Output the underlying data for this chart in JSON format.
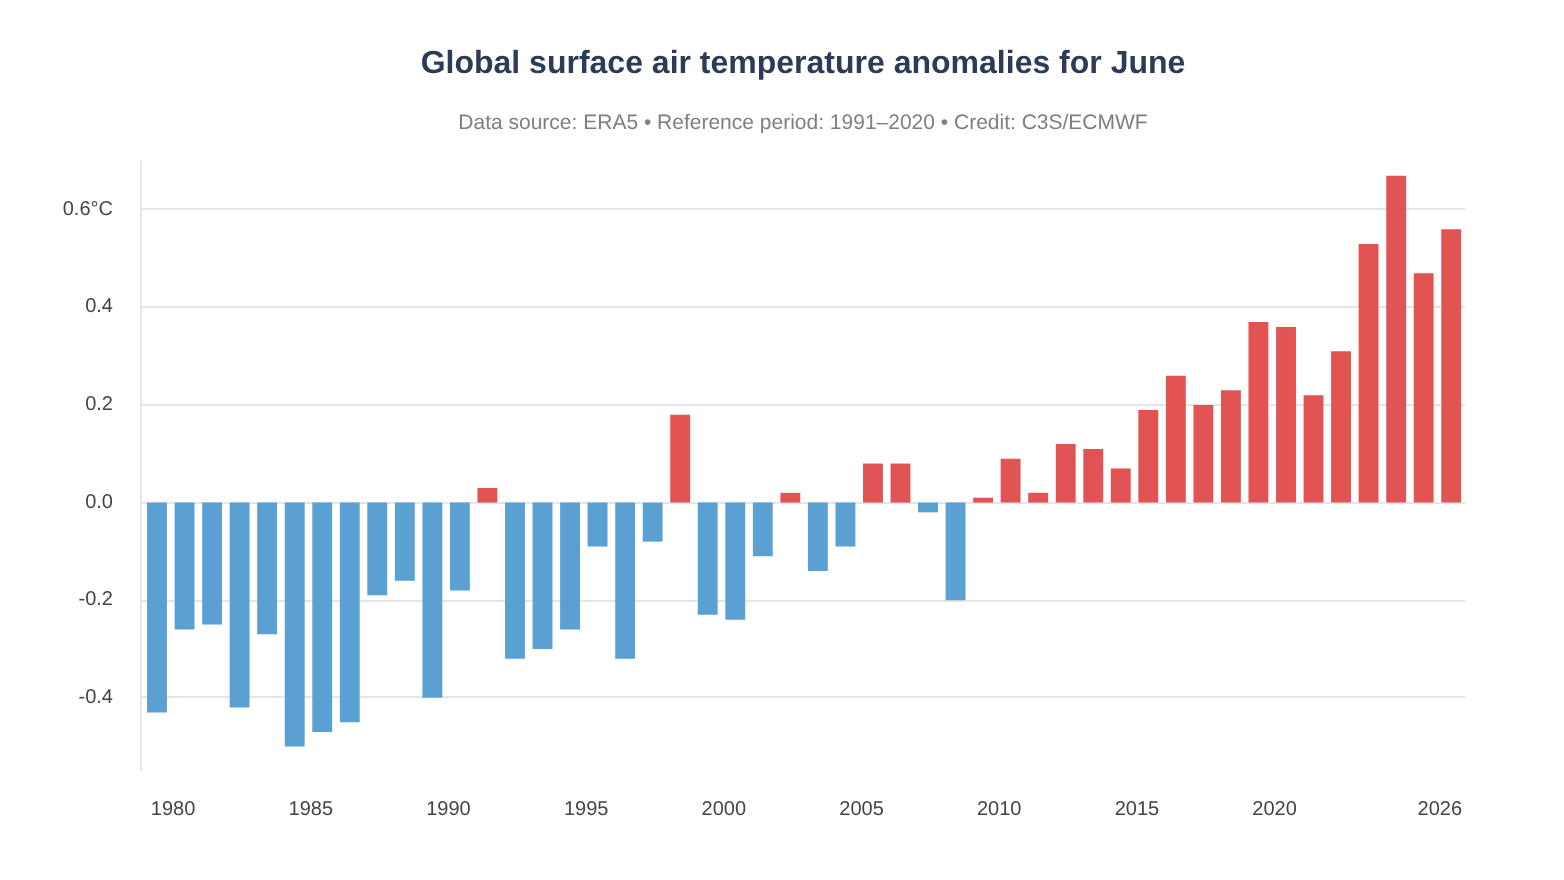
{
  "chart_data": {
    "type": "bar",
    "title": "Global surface air temperature anomalies for June",
    "subtitle": "Data source: ERA5 • Reference period: 1991–2020 • Credit: C3S/ECMWF",
    "x": [
      "1979-06",
      "1980-06",
      "1981-06",
      "1982-06",
      "1983-06",
      "1984-06",
      "1985-06",
      "1986-06",
      "1987-06",
      "1988-06",
      "1989-06",
      "1990-06",
      "1991-06",
      "1992-06",
      "1993-06",
      "1994-06",
      "1995-06",
      "1996-06",
      "1997-06",
      "1998-06",
      "1999-06",
      "2000-06",
      "2001-06",
      "2002-06",
      "2003-06",
      "2004-06",
      "2005-06",
      "2006-06",
      "2007-06",
      "2008-06",
      "2009-06",
      "2010-06",
      "2011-06",
      "2012-06",
      "2013-06",
      "2014-06",
      "2015-06",
      "2016-06",
      "2017-06",
      "2018-06",
      "2019-06",
      "2020-06",
      "2021-06",
      "2022-06",
      "2023-06",
      "2024-06",
      "2025-06",
      "2026-06"
    ],
    "values": [
      -0.43,
      -0.26,
      -0.25,
      -0.42,
      -0.27,
      -0.5,
      -0.47,
      -0.45,
      -0.19,
      -0.16,
      -0.4,
      -0.18,
      0.03,
      -0.32,
      -0.3,
      -0.26,
      -0.09,
      -0.32,
      -0.08,
      0.18,
      -0.23,
      -0.24,
      -0.11,
      0.02,
      -0.14,
      -0.09,
      0.08,
      0.08,
      -0.02,
      -0.2,
      0.01,
      0.09,
      0.02,
      0.12,
      0.11,
      0.07,
      0.19,
      0.26,
      0.2,
      0.23,
      0.37,
      0.36,
      0.22,
      0.31,
      0.53,
      0.67,
      0.47,
      0.56
    ],
    "colors": [
      "#5ba0d2",
      "#5ba0d2",
      "#5ba0d2",
      "#5ba0d2",
      "#5ba0d2",
      "#5ba0d2",
      "#5ba0d2",
      "#5ba0d2",
      "#5ba0d2",
      "#5ba0d2",
      "#5ba0d2",
      "#5ba0d2",
      "#e25354",
      "#5ba0d2",
      "#5ba0d2",
      "#5ba0d2",
      "#5ba0d2",
      "#5ba0d2",
      "#5ba0d2",
      "#e25354",
      "#5ba0d2",
      "#5ba0d2",
      "#5ba0d2",
      "#e25354",
      "#5ba0d2",
      "#5ba0d2",
      "#e25354",
      "#e25354",
      "#5ba0d2",
      "#5ba0d2",
      "#e25354",
      "#e25354",
      "#e25354",
      "#e25354",
      "#e25354",
      "#e25354",
      "#e25354",
      "#e25354",
      "#e25354",
      "#e25354",
      "#e25354",
      "#e25354",
      "#e25354",
      "#e25354",
      "#e25354",
      "#e25354",
      "#e25354",
      "#e25354"
    ],
    "xlim": [
      "1978-11",
      "2026-12"
    ],
    "xticks": [
      "1980",
      "1985",
      "1990",
      "1995",
      "2000",
      "2005",
      "2010",
      "2015",
      "2020",
      "2026"
    ],
    "ylim": [
      -0.55,
      0.7
    ],
    "yticks": [
      -0.4,
      -0.2,
      {
        "value": 0,
        "label": "0.0"
      },
      0.2,
      0.4,
      {
        "value": 0.6,
        "label": "0.6°C"
      }
    ],
    "grid": "y"
  }
}
